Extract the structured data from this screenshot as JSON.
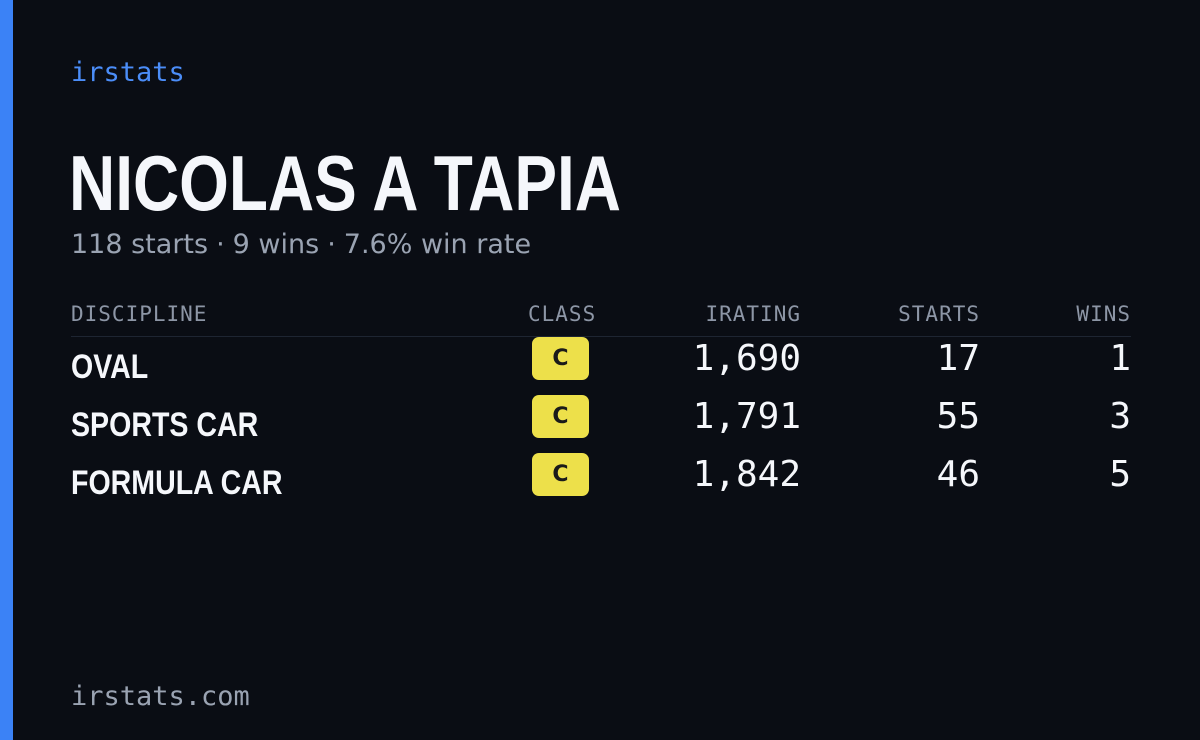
{
  "brand": "irstats",
  "driver": {
    "name": "NICOLAS A TAPIA",
    "starts": "118 starts",
    "wins": "9 wins",
    "win_rate": "7.6% win rate",
    "separator": "·"
  },
  "table": {
    "headers": {
      "discipline": "DISCIPLINE",
      "class": "CLASS",
      "irating": "IRATING",
      "starts": "STARTS",
      "wins": "WINS"
    },
    "rows": [
      {
        "discipline": "OVAL",
        "class": "C",
        "irating": "1,690",
        "starts": "17",
        "wins": "1"
      },
      {
        "discipline": "SPORTS CAR",
        "class": "C",
        "irating": "1,791",
        "starts": "55",
        "wins": "3"
      },
      {
        "discipline": "FORMULA CAR",
        "class": "C",
        "irating": "1,842",
        "starts": "46",
        "wins": "5"
      }
    ]
  },
  "footer": "irstats.com",
  "colors": {
    "accent": "#3b82f6",
    "background": "#0a0d14",
    "class_c_badge": "#ede04a"
  }
}
